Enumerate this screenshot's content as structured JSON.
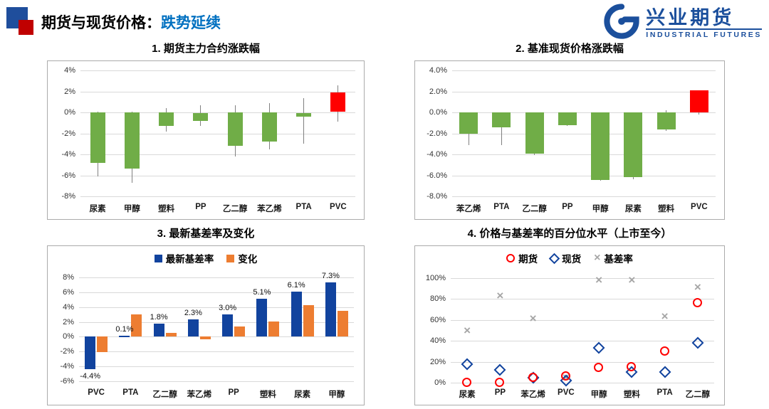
{
  "header": {
    "title_prefix": "期货与现货价格：",
    "title_highlight": "跌势延续"
  },
  "logo": {
    "cn": "兴业期货",
    "en": "INDUSTRIAL FUTURES"
  },
  "colors": {
    "green": "#70AD47",
    "red": "#FF0000",
    "navy": "#11439E",
    "orange": "#ED7D31",
    "gray": "#A6A6A6",
    "logo_blue": "#1B4F9C",
    "title_accent": "#0070C0",
    "header_square_blue": "#1F4E9C",
    "header_square_red": "#C00000"
  },
  "chart_data": [
    {
      "type": "candlestick",
      "title": "1. 期货主力合约涨跌幅",
      "categories": [
        "尿素",
        "甲醇",
        "塑料",
        "PP",
        "乙二醇",
        "苯乙烯",
        "PTA",
        "PVC"
      ],
      "points": [
        {
          "high": 0.1,
          "low": -6.1,
          "body_top": 0.0,
          "body_bottom": -4.8,
          "up": false
        },
        {
          "high": 0.1,
          "low": -6.7,
          "body_top": 0.0,
          "body_bottom": -5.35,
          "up": false
        },
        {
          "high": 0.4,
          "low": -1.8,
          "body_top": 0.0,
          "body_bottom": -1.3,
          "up": false
        },
        {
          "high": 0.7,
          "low": -1.3,
          "body_top": -0.1,
          "body_bottom": -0.8,
          "up": false
        },
        {
          "high": 0.65,
          "low": -4.2,
          "body_top": 0.0,
          "body_bottom": -3.2,
          "up": false
        },
        {
          "high": 0.9,
          "low": -3.55,
          "body_top": 0.0,
          "body_bottom": -2.75,
          "up": false
        },
        {
          "high": 1.35,
          "low": -3.0,
          "body_top": -0.1,
          "body_bottom": -0.4,
          "up": false
        },
        {
          "high": 2.6,
          "low": -0.9,
          "body_top": 1.9,
          "body_bottom": 0.05,
          "up": true
        }
      ],
      "ylim": [
        -8,
        4
      ],
      "ytick_step": 2,
      "ytick_decimals": 0,
      "grid": true
    },
    {
      "type": "candlestick",
      "title": "2. 基准现货价格涨跌幅",
      "categories": [
        "苯乙烯",
        "PTA",
        "乙二醇",
        "PP",
        "甲醇",
        "尿素",
        "塑料",
        "PVC"
      ],
      "points": [
        {
          "high": 0.0,
          "low": -3.1,
          "body_top": 0.0,
          "body_bottom": -2.0,
          "up": false
        },
        {
          "high": 0.0,
          "low": -3.1,
          "body_top": 0.0,
          "body_bottom": -1.45,
          "up": false
        },
        {
          "high": 0.0,
          "low": -4.05,
          "body_top": 0.0,
          "body_bottom": -3.9,
          "up": false
        },
        {
          "high": 0.0,
          "low": -1.3,
          "body_top": 0.0,
          "body_bottom": -1.25,
          "up": false
        },
        {
          "high": 0.0,
          "low": -6.5,
          "body_top": 0.0,
          "body_bottom": -6.45,
          "up": false
        },
        {
          "high": 0.0,
          "low": -6.35,
          "body_top": 0.0,
          "body_bottom": -6.2,
          "up": false
        },
        {
          "high": 0.2,
          "low": -1.75,
          "body_top": 0.0,
          "body_bottom": -1.6,
          "up": false
        },
        {
          "high": 2.1,
          "low": -0.2,
          "body_top": 2.1,
          "body_bottom": 0.0,
          "up": true
        }
      ],
      "ylim": [
        -8,
        4
      ],
      "ytick_step": 2,
      "ytick_decimals": 1,
      "grid": true
    },
    {
      "type": "grouped_bar",
      "title": "3. 最新基差率及变化",
      "categories": [
        "PVC",
        "PTA",
        "乙二醇",
        "苯乙烯",
        "PP",
        "塑料",
        "尿素",
        "甲醇"
      ],
      "series": [
        {
          "name": "最新基差率",
          "color": "navy",
          "values": [
            -4.4,
            0.1,
            1.8,
            2.3,
            3.0,
            5.1,
            6.1,
            7.3
          ],
          "labels": [
            "-4.4%",
            "0.1%",
            "1.8%",
            "2.3%",
            "3.0%",
            "5.1%",
            "6.1%",
            "7.3%"
          ]
        },
        {
          "name": "变化",
          "color": "orange",
          "values": [
            -2.1,
            3.0,
            0.5,
            -0.3,
            1.4,
            2.1,
            4.3,
            3.5
          ]
        }
      ],
      "ylim": [
        -6,
        8
      ],
      "ytick_step": 2,
      "ytick_decimals": 0,
      "grid": true,
      "legend_position": "top"
    },
    {
      "type": "scatter",
      "title": "4. 价格与基差率的百分位水平（上市至今）",
      "categories": [
        "尿素",
        "PP",
        "苯乙烯",
        "PVC",
        "甲醇",
        "塑料",
        "PTA",
        "乙二醇"
      ],
      "series": [
        {
          "name": "期货",
          "marker": "circle",
          "color": "red",
          "values": [
            0,
            0,
            5,
            6,
            14,
            15,
            30,
            76
          ]
        },
        {
          "name": "现货",
          "marker": "diamond",
          "color": "navy",
          "values": [
            18,
            12,
            5,
            2,
            33,
            10,
            10,
            38
          ]
        },
        {
          "name": "基差率",
          "marker": "x",
          "color": "gray",
          "values": [
            50,
            83,
            61,
            5,
            98,
            98,
            63,
            91
          ]
        }
      ],
      "ylim": [
        0,
        100
      ],
      "ytick_step": 20,
      "ytick_decimals": 0,
      "grid": true,
      "legend_position": "top"
    }
  ]
}
